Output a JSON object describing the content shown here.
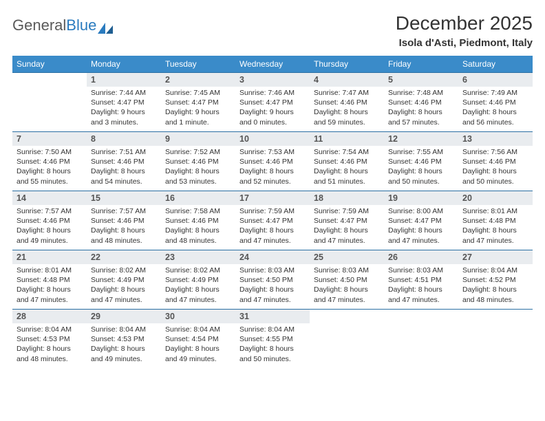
{
  "brand": {
    "part1": "General",
    "part2": "Blue"
  },
  "title": "December 2025",
  "location": "Isola d'Asti, Piedmont, Italy",
  "colors": {
    "header_bg": "#3a8bc9",
    "header_text": "#ffffff",
    "daynum_bg": "#e9ecef",
    "row_border": "#2a6fa3",
    "logo_blue": "#2a7bbf",
    "logo_gray": "#5a5a5a"
  },
  "day_headers": [
    "Sunday",
    "Monday",
    "Tuesday",
    "Wednesday",
    "Thursday",
    "Friday",
    "Saturday"
  ],
  "weeks": [
    [
      {
        "n": "",
        "sr": "",
        "ss": "",
        "d1": "",
        "d2": ""
      },
      {
        "n": "1",
        "sr": "Sunrise: 7:44 AM",
        "ss": "Sunset: 4:47 PM",
        "d1": "Daylight: 9 hours",
        "d2": "and 3 minutes."
      },
      {
        "n": "2",
        "sr": "Sunrise: 7:45 AM",
        "ss": "Sunset: 4:47 PM",
        "d1": "Daylight: 9 hours",
        "d2": "and 1 minute."
      },
      {
        "n": "3",
        "sr": "Sunrise: 7:46 AM",
        "ss": "Sunset: 4:47 PM",
        "d1": "Daylight: 9 hours",
        "d2": "and 0 minutes."
      },
      {
        "n": "4",
        "sr": "Sunrise: 7:47 AM",
        "ss": "Sunset: 4:46 PM",
        "d1": "Daylight: 8 hours",
        "d2": "and 59 minutes."
      },
      {
        "n": "5",
        "sr": "Sunrise: 7:48 AM",
        "ss": "Sunset: 4:46 PM",
        "d1": "Daylight: 8 hours",
        "d2": "and 57 minutes."
      },
      {
        "n": "6",
        "sr": "Sunrise: 7:49 AM",
        "ss": "Sunset: 4:46 PM",
        "d1": "Daylight: 8 hours",
        "d2": "and 56 minutes."
      }
    ],
    [
      {
        "n": "7",
        "sr": "Sunrise: 7:50 AM",
        "ss": "Sunset: 4:46 PM",
        "d1": "Daylight: 8 hours",
        "d2": "and 55 minutes."
      },
      {
        "n": "8",
        "sr": "Sunrise: 7:51 AM",
        "ss": "Sunset: 4:46 PM",
        "d1": "Daylight: 8 hours",
        "d2": "and 54 minutes."
      },
      {
        "n": "9",
        "sr": "Sunrise: 7:52 AM",
        "ss": "Sunset: 4:46 PM",
        "d1": "Daylight: 8 hours",
        "d2": "and 53 minutes."
      },
      {
        "n": "10",
        "sr": "Sunrise: 7:53 AM",
        "ss": "Sunset: 4:46 PM",
        "d1": "Daylight: 8 hours",
        "d2": "and 52 minutes."
      },
      {
        "n": "11",
        "sr": "Sunrise: 7:54 AM",
        "ss": "Sunset: 4:46 PM",
        "d1": "Daylight: 8 hours",
        "d2": "and 51 minutes."
      },
      {
        "n": "12",
        "sr": "Sunrise: 7:55 AM",
        "ss": "Sunset: 4:46 PM",
        "d1": "Daylight: 8 hours",
        "d2": "and 50 minutes."
      },
      {
        "n": "13",
        "sr": "Sunrise: 7:56 AM",
        "ss": "Sunset: 4:46 PM",
        "d1": "Daylight: 8 hours",
        "d2": "and 50 minutes."
      }
    ],
    [
      {
        "n": "14",
        "sr": "Sunrise: 7:57 AM",
        "ss": "Sunset: 4:46 PM",
        "d1": "Daylight: 8 hours",
        "d2": "and 49 minutes."
      },
      {
        "n": "15",
        "sr": "Sunrise: 7:57 AM",
        "ss": "Sunset: 4:46 PM",
        "d1": "Daylight: 8 hours",
        "d2": "and 48 minutes."
      },
      {
        "n": "16",
        "sr": "Sunrise: 7:58 AM",
        "ss": "Sunset: 4:46 PM",
        "d1": "Daylight: 8 hours",
        "d2": "and 48 minutes."
      },
      {
        "n": "17",
        "sr": "Sunrise: 7:59 AM",
        "ss": "Sunset: 4:47 PM",
        "d1": "Daylight: 8 hours",
        "d2": "and 47 minutes."
      },
      {
        "n": "18",
        "sr": "Sunrise: 7:59 AM",
        "ss": "Sunset: 4:47 PM",
        "d1": "Daylight: 8 hours",
        "d2": "and 47 minutes."
      },
      {
        "n": "19",
        "sr": "Sunrise: 8:00 AM",
        "ss": "Sunset: 4:47 PM",
        "d1": "Daylight: 8 hours",
        "d2": "and 47 minutes."
      },
      {
        "n": "20",
        "sr": "Sunrise: 8:01 AM",
        "ss": "Sunset: 4:48 PM",
        "d1": "Daylight: 8 hours",
        "d2": "and 47 minutes."
      }
    ],
    [
      {
        "n": "21",
        "sr": "Sunrise: 8:01 AM",
        "ss": "Sunset: 4:48 PM",
        "d1": "Daylight: 8 hours",
        "d2": "and 47 minutes."
      },
      {
        "n": "22",
        "sr": "Sunrise: 8:02 AM",
        "ss": "Sunset: 4:49 PM",
        "d1": "Daylight: 8 hours",
        "d2": "and 47 minutes."
      },
      {
        "n": "23",
        "sr": "Sunrise: 8:02 AM",
        "ss": "Sunset: 4:49 PM",
        "d1": "Daylight: 8 hours",
        "d2": "and 47 minutes."
      },
      {
        "n": "24",
        "sr": "Sunrise: 8:03 AM",
        "ss": "Sunset: 4:50 PM",
        "d1": "Daylight: 8 hours",
        "d2": "and 47 minutes."
      },
      {
        "n": "25",
        "sr": "Sunrise: 8:03 AM",
        "ss": "Sunset: 4:50 PM",
        "d1": "Daylight: 8 hours",
        "d2": "and 47 minutes."
      },
      {
        "n": "26",
        "sr": "Sunrise: 8:03 AM",
        "ss": "Sunset: 4:51 PM",
        "d1": "Daylight: 8 hours",
        "d2": "and 47 minutes."
      },
      {
        "n": "27",
        "sr": "Sunrise: 8:04 AM",
        "ss": "Sunset: 4:52 PM",
        "d1": "Daylight: 8 hours",
        "d2": "and 48 minutes."
      }
    ],
    [
      {
        "n": "28",
        "sr": "Sunrise: 8:04 AM",
        "ss": "Sunset: 4:53 PM",
        "d1": "Daylight: 8 hours",
        "d2": "and 48 minutes."
      },
      {
        "n": "29",
        "sr": "Sunrise: 8:04 AM",
        "ss": "Sunset: 4:53 PM",
        "d1": "Daylight: 8 hours",
        "d2": "and 49 minutes."
      },
      {
        "n": "30",
        "sr": "Sunrise: 8:04 AM",
        "ss": "Sunset: 4:54 PM",
        "d1": "Daylight: 8 hours",
        "d2": "and 49 minutes."
      },
      {
        "n": "31",
        "sr": "Sunrise: 8:04 AM",
        "ss": "Sunset: 4:55 PM",
        "d1": "Daylight: 8 hours",
        "d2": "and 50 minutes."
      },
      {
        "n": "",
        "sr": "",
        "ss": "",
        "d1": "",
        "d2": ""
      },
      {
        "n": "",
        "sr": "",
        "ss": "",
        "d1": "",
        "d2": ""
      },
      {
        "n": "",
        "sr": "",
        "ss": "",
        "d1": "",
        "d2": ""
      }
    ]
  ]
}
